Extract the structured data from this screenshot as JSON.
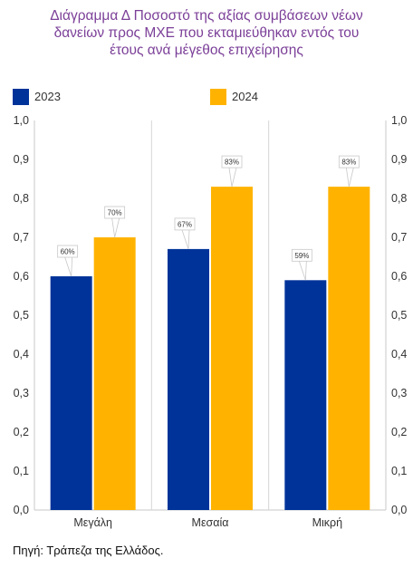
{
  "title_lines": [
    "Διάγραμμα Δ Ποσοστό της αξίας συμβάσεων νέων",
    "δανείων προς ΜΧΕ που εκταμιεύθηκαν εντός του",
    "έτους ανά μέγεθος επιχείρησης"
  ],
  "source": "Πηγή: Τράπεζα της Ελλάδος.",
  "colors": {
    "s2023": "#003399",
    "s2024": "#ffb300",
    "title": "#7b3f98"
  },
  "chart_data": {
    "type": "bar",
    "categories": [
      "Μεγάλη",
      "Μεσαία",
      "Μικρή"
    ],
    "series": [
      {
        "name": "2023",
        "values": [
          0.6,
          0.67,
          0.59
        ],
        "labels": [
          "60%",
          "67%",
          "59%"
        ]
      },
      {
        "name": "2024",
        "values": [
          0.7,
          0.83,
          0.83
        ],
        "labels": [
          "70%",
          "83%",
          "83%"
        ]
      }
    ],
    "ylim": [
      0,
      1
    ],
    "yticks": [
      "0,0",
      "0,1",
      "0,2",
      "0,3",
      "0,4",
      "0,5",
      "0,6",
      "0,7",
      "0,8",
      "0,9",
      "1,0"
    ],
    "secondary_y_axis": true,
    "legend": "top-left",
    "grid": "vertical separators"
  }
}
